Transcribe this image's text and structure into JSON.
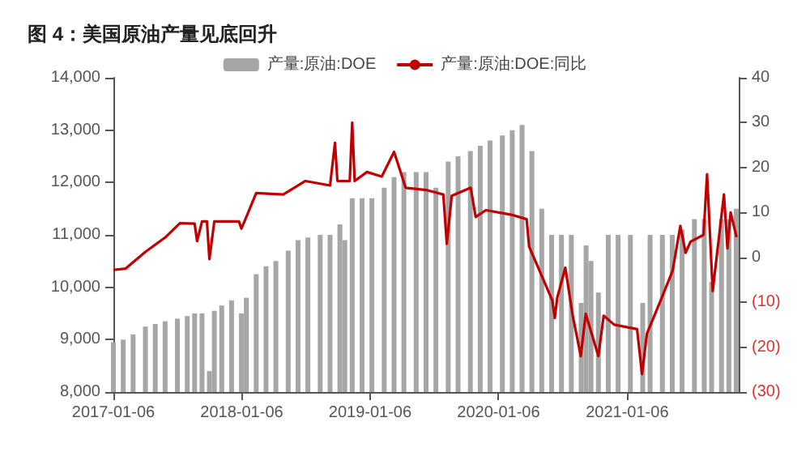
{
  "chart_data": {
    "type": "bar",
    "title": "图 4：美国原油产量见底回升",
    "legend": "top",
    "grid": false,
    "marker": "none",
    "line_style": "solid",
    "xlim": [
      "2017-01-06",
      "2021-11-19"
    ],
    "xticks": [
      {
        "value": "2017-01-06",
        "label": "2017-01-06"
      },
      {
        "value": "2018-01-06",
        "label": "2018-01-06"
      },
      {
        "value": "2019-01-06",
        "label": "2019-01-06"
      },
      {
        "value": "2020-01-06",
        "label": "2020-01-06"
      },
      {
        "value": "2021-01-06",
        "label": "2021-01-06"
      }
    ],
    "ylim": [
      8000,
      14000
    ],
    "yticks": [
      {
        "value": 8000,
        "label": "8,000"
      },
      {
        "value": 9000,
        "label": "9,000"
      },
      {
        "value": 10000,
        "label": "10,000"
      },
      {
        "value": 11000,
        "label": "11,000"
      },
      {
        "value": 12000,
        "label": "12,000"
      },
      {
        "value": 13000,
        "label": "13,000"
      },
      {
        "value": 14000,
        "label": "14,000"
      }
    ],
    "y2lim": [
      -30,
      40
    ],
    "y2ticks": [
      {
        "value": -30,
        "label": "(30)"
      },
      {
        "value": -20,
        "label": "(20)"
      },
      {
        "value": -10,
        "label": "(10)"
      },
      0,
      10,
      20,
      30,
      40
    ],
    "series": [
      {
        "name": "产量:原油:DOE",
        "color": "#a6a6a6",
        "x": [
          "2017-01-06",
          "2017-02-03",
          "2017-03-03",
          "2017-04-07",
          "2017-05-05",
          "2017-06-02",
          "2017-07-07",
          "2017-08-04",
          "2017-08-25",
          "2017-09-01",
          "2017-09-15",
          "2017-10-06",
          "2017-10-20",
          "2017-11-10",
          "2017-12-08",
          "2018-01-05",
          "2018-01-19",
          "2018-02-16",
          "2018-03-16",
          "2018-04-13",
          "2018-05-18",
          "2018-06-15",
          "2018-07-13",
          "2018-08-17",
          "2018-09-14",
          "2018-10-12",
          "2018-10-26",
          "2018-11-16",
          "2018-12-14",
          "2019-01-11",
          "2019-02-15",
          "2019-03-15",
          "2019-04-12",
          "2019-05-17",
          "2019-06-14",
          "2019-07-12",
          "2019-08-16",
          "2019-09-13",
          "2019-10-18",
          "2019-11-15",
          "2019-12-13",
          "2020-01-17",
          "2020-02-14",
          "2020-03-13",
          "2020-04-10",
          "2020-05-08",
          "2020-06-05",
          "2020-07-03",
          "2020-07-31",
          "2020-08-28",
          "2020-09-11",
          "2020-09-25",
          "2020-10-16",
          "2020-11-13",
          "2020-12-11",
          "2021-01-15",
          "2021-02-19",
          "2021-03-12",
          "2021-04-16",
          "2021-05-14",
          "2021-06-11",
          "2021-07-16",
          "2021-08-13",
          "2021-09-03",
          "2021-10-01",
          "2021-10-22",
          "2021-11-12"
        ],
        "values": [
          8950,
          9000,
          9100,
          9250,
          9300,
          9350,
          9400,
          9450,
          9500,
          8000,
          9500,
          8400,
          9550,
          9650,
          9750,
          9500,
          9800,
          10250,
          10400,
          10500,
          10700,
          10900,
          10950,
          11000,
          11000,
          11200,
          10900,
          11700,
          11700,
          11700,
          11900,
          12100,
          12200,
          12200,
          12200,
          11900,
          12400,
          12500,
          12600,
          12700,
          12800,
          12900,
          13000,
          13100,
          12600,
          11500,
          11000,
          11000,
          11000,
          9700,
          10800,
          10500,
          9900,
          11000,
          11000,
          11000,
          9700,
          11000,
          11000,
          11000,
          11100,
          11300,
          11300,
          10100,
          11300,
          11300,
          11500
        ]
      },
      {
        "name": "产量:原油:DOE:同比",
        "type": "line",
        "axis": "y2",
        "color": "#c00000",
        "x": [
          "2017-01-06",
          "2017-02-10",
          "2017-04-07",
          "2017-06-02",
          "2017-07-14",
          "2017-08-25",
          "2017-09-01",
          "2017-09-15",
          "2017-09-29",
          "2017-10-06",
          "2017-10-20",
          "2017-12-29",
          "2018-01-05",
          "2018-01-19",
          "2018-02-16",
          "2018-05-04",
          "2018-07-06",
          "2018-09-14",
          "2018-09-28",
          "2018-10-05",
          "2018-11-09",
          "2018-11-16",
          "2018-11-23",
          "2018-12-28",
          "2019-02-08",
          "2019-03-15",
          "2019-04-17",
          "2019-06-14",
          "2019-08-02",
          "2019-08-12",
          "2019-08-26",
          "2019-10-19",
          "2019-11-02",
          "2019-12-01",
          "2020-02-11",
          "2020-03-26",
          "2020-04-02",
          "2020-06-07",
          "2020-06-14",
          "2020-06-21",
          "2020-07-14",
          "2020-08-04",
          "2020-08-27",
          "2020-09-10",
          "2020-10-16",
          "2020-10-31",
          "2020-11-30",
          "2021-02-03",
          "2021-02-17",
          "2021-03-03",
          "2021-04-09",
          "2021-05-15",
          "2021-06-06",
          "2021-06-21",
          "2021-07-05",
          "2021-08-11",
          "2021-08-21",
          "2021-09-06",
          "2021-10-08",
          "2021-10-18",
          "2021-10-27",
          "2021-11-13"
        ],
        "values": [
          -2.8,
          -2.5,
          1.2,
          4.4,
          7.6,
          7.5,
          3.6,
          8,
          8,
          -0.4,
          8,
          8,
          6.4,
          9,
          14.3,
          14,
          17,
          16,
          25.5,
          17,
          17,
          30,
          17,
          19,
          18,
          23.5,
          15.5,
          15,
          14,
          3,
          13.7,
          15.5,
          9,
          10.5,
          9.5,
          8.5,
          2.4,
          -9.6,
          -13.5,
          -9,
          -2.3,
          -13,
          -22,
          -12.6,
          -22,
          -13,
          -15,
          -16,
          -26,
          -17,
          -10,
          -3,
          7,
          1,
          3.5,
          5,
          18.5,
          -7.5,
          14,
          2,
          10,
          4.5
        ]
      }
    ]
  }
}
